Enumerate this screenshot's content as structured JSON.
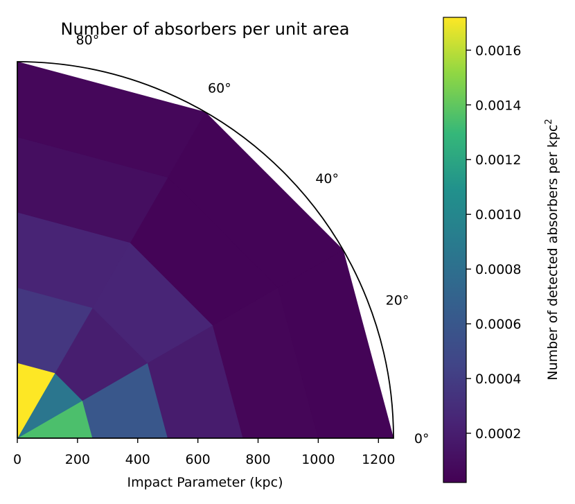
{
  "chart_data": {
    "type": "heatmap",
    "title": "Number of absorbers per unit area",
    "xlabel": "Impact Parameter (kpc)",
    "xlim": [
      0,
      1250
    ],
    "x_ticks": [
      "0",
      "200",
      "400",
      "600",
      "800",
      "1000",
      "1200"
    ],
    "theta_range_deg": [
      0,
      90
    ],
    "theta_ticks": [
      "0°",
      "20°",
      "40°",
      "60°",
      "80°"
    ],
    "radial_bins": [
      0,
      250,
      500,
      750,
      1000,
      1250
    ],
    "angle_bins_deg": [
      0,
      30,
      60,
      90
    ],
    "colorbar": {
      "label": "Number of detected absorbers per kpc",
      "label_superscript": "2",
      "range": [
        2e-05,
        0.00172
      ],
      "ticks": [
        "0.0002",
        "0.0004",
        "0.0006",
        "0.0008",
        "0.0010",
        "0.0012",
        "0.0014",
        "0.0016"
      ],
      "colormap": "viridis"
    },
    "grid": false,
    "cells": [
      {
        "r": [
          0,
          250
        ],
        "theta": [
          0,
          30
        ],
        "value": 0.00135
      },
      {
        "r": [
          0,
          250
        ],
        "theta": [
          30,
          60
        ],
        "value": 0.00085
      },
      {
        "r": [
          0,
          250
        ],
        "theta": [
          60,
          90
        ],
        "value": 0.00172
      },
      {
        "r": [
          250,
          500
        ],
        "theta": [
          0,
          30
        ],
        "value": 0.0006
      },
      {
        "r": [
          250,
          500
        ],
        "theta": [
          30,
          60
        ],
        "value": 0.0002
      },
      {
        "r": [
          250,
          500
        ],
        "theta": [
          60,
          90
        ],
        "value": 0.00036
      },
      {
        "r": [
          500,
          750
        ],
        "theta": [
          0,
          30
        ],
        "value": 0.00019
      },
      {
        "r": [
          500,
          750
        ],
        "theta": [
          30,
          60
        ],
        "value": 0.00025
      },
      {
        "r": [
          500,
          750
        ],
        "theta": [
          60,
          90
        ],
        "value": 0.00024
      },
      {
        "r": [
          750,
          1000
        ],
        "theta": [
          0,
          30
        ],
        "value": 5e-05
      },
      {
        "r": [
          750,
          1000
        ],
        "theta": [
          30,
          60
        ],
        "value": 4e-05
      },
      {
        "r": [
          750,
          1000
        ],
        "theta": [
          60,
          90
        ],
        "value": 0.0001
      },
      {
        "r": [
          1000,
          1250
        ],
        "theta": [
          0,
          30
        ],
        "value": 4e-05
      },
      {
        "r": [
          1000,
          1250
        ],
        "theta": [
          30,
          60
        ],
        "value": 4e-05
      },
      {
        "r": [
          1000,
          1250
        ],
        "theta": [
          60,
          90
        ],
        "value": 6e-05
      }
    ]
  }
}
